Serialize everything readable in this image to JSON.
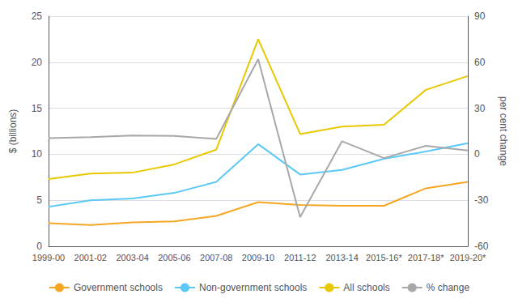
{
  "chart_data": {
    "type": "line",
    "categories": [
      "1999-00",
      "2001-02",
      "2003-04",
      "2005-06",
      "2007-08",
      "2009-10",
      "2011-12",
      "2013-14",
      "2015-16*",
      "2017-18*",
      "2019-20*"
    ],
    "series": [
      {
        "name": "Government schools",
        "color": "#F5A623",
        "values": [
          2.5,
          2.3,
          2.6,
          2.7,
          3.3,
          4.8,
          4.5,
          4.4,
          4.4,
          6.3,
          7.0
        ]
      },
      {
        "name": "Non-government schools",
        "color": "#5BC8F5",
        "values": [
          4.3,
          5.0,
          5.2,
          5.8,
          7.0,
          11.1,
          7.8,
          8.3,
          9.5,
          10.3,
          11.2
        ]
      },
      {
        "name": "All schools",
        "color": "#E8C800",
        "values": [
          7.3,
          7.9,
          8.0,
          8.9,
          10.5,
          22.5,
          12.2,
          13.0,
          13.2,
          17.0,
          18.5
        ]
      },
      {
        "name": "% change",
        "color": "#A8A8A8",
        "axis": "y2",
        "values": [
          10.5,
          11.2,
          12.2,
          12.0,
          10.0,
          62.0,
          -41.0,
          8.5,
          -2.5,
          5.5,
          2.5
        ]
      }
    ],
    "ylabel": "$ (billions)",
    "y2label": "per cent change",
    "ylim": [
      0,
      25
    ],
    "yticks": [
      0,
      5,
      10,
      15,
      20,
      25
    ],
    "y2lim": [
      -60,
      90
    ],
    "y2ticks": [
      -60,
      -30,
      0,
      30,
      60,
      90
    ],
    "grid": true,
    "legend": "bottom"
  }
}
